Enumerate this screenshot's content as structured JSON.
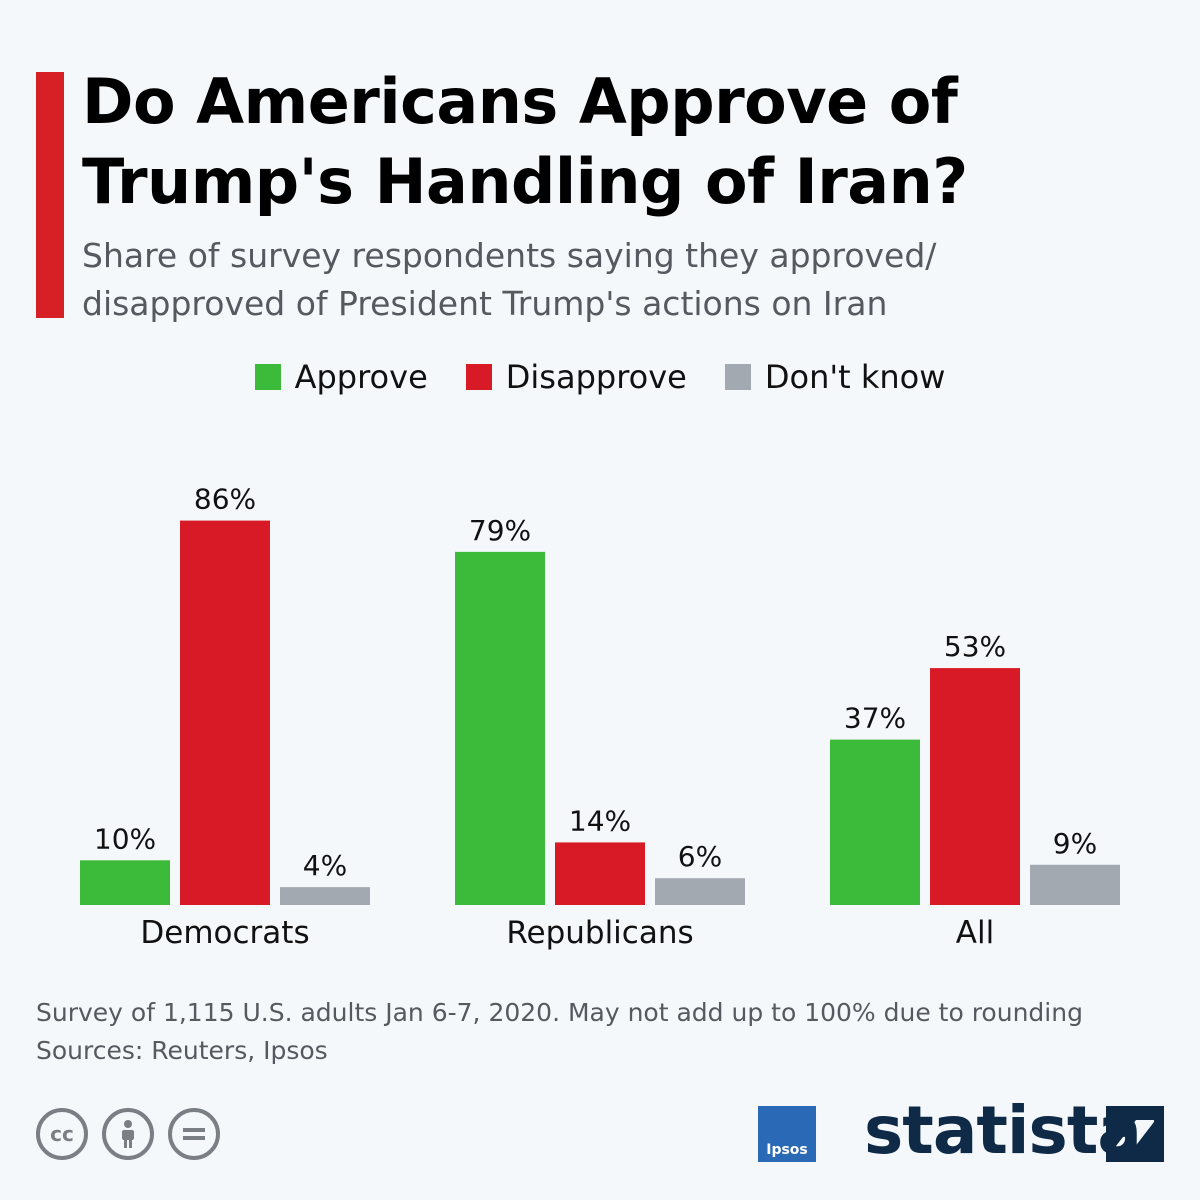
{
  "header": {
    "title_line1": "Do Americans Approve of",
    "title_line2": "Trump's Handling of Iran?",
    "subtitle_line1": "Share of survey respondents saying they approved/",
    "subtitle_line2": "disapproved of President Trump's actions on Iran"
  },
  "legend": [
    "Approve",
    "Disapprove",
    "Don't know"
  ],
  "colors": {
    "approve": "#3cba3a",
    "disapprove": "#d71a25",
    "dont_know": "#a3a9b0",
    "accent": "#d71f26"
  },
  "chart_data": {
    "type": "bar",
    "categories": [
      "Democrats",
      "Republicans",
      "All"
    ],
    "series": [
      {
        "name": "Approve",
        "values": [
          10,
          79,
          37
        ],
        "labels": [
          "10%",
          "79%",
          "37%"
        ]
      },
      {
        "name": "Disapprove",
        "values": [
          86,
          14,
          53
        ],
        "labels": [
          "86%",
          "14%",
          "53%"
        ]
      },
      {
        "name": "Don't know",
        "values": [
          4,
          6,
          9
        ],
        "labels": [
          "4%",
          "6%",
          "9%"
        ]
      }
    ],
    "ylim": [
      0,
      100
    ],
    "grid": false,
    "legend_position": "top"
  },
  "footer": {
    "note": "Survey of 1,115 U.S. adults Jan 6-7, 2020. May not add up to 100% due to rounding",
    "sources": "Sources: Reuters, Ipsos",
    "license_icons": [
      "cc-icon",
      "attribution-icon",
      "no-derivatives-icon"
    ],
    "source_logo": "Ipsos",
    "brand": "statista"
  }
}
